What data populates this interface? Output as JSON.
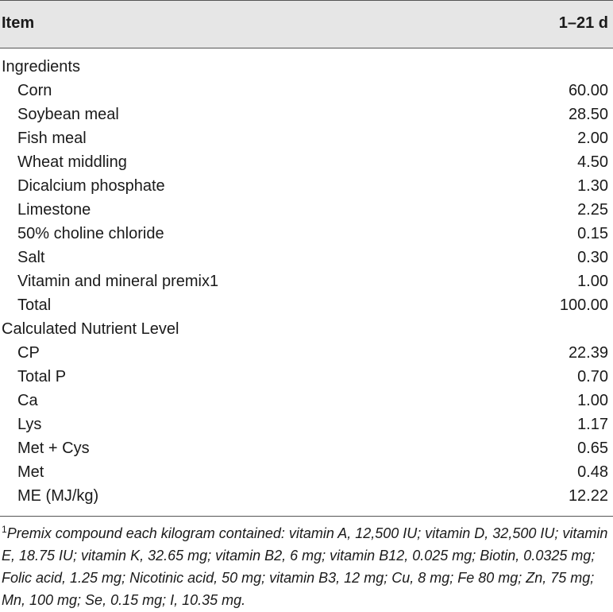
{
  "header": {
    "item": "Item",
    "period": "1–21 d"
  },
  "sections": [
    {
      "title": "Ingredients",
      "rows": [
        {
          "label": "Corn",
          "value": "60.00"
        },
        {
          "label": "Soybean meal",
          "value": "28.50"
        },
        {
          "label": "Fish meal",
          "value": "2.00"
        },
        {
          "label": "Wheat middling",
          "value": "4.50"
        },
        {
          "label": "Dicalcium phosphate",
          "value": "1.30"
        },
        {
          "label": "Limestone",
          "value": "2.25"
        },
        {
          "label": "50% choline chloride",
          "value": "0.15"
        },
        {
          "label": "Salt",
          "value": "0.30"
        },
        {
          "label": "Vitamin and mineral premix1",
          "value": "1.00"
        },
        {
          "label": "Total",
          "value": "100.00"
        }
      ]
    },
    {
      "title": "Calculated Nutrient Level",
      "rows": [
        {
          "label": "CP",
          "value": "22.39"
        },
        {
          "label": "Total P",
          "value": "0.70"
        },
        {
          "label": "Ca",
          "value": "1.00"
        },
        {
          "label": "Lys",
          "value": "1.17"
        },
        {
          "label": "Met + Cys",
          "value": "0.65"
        },
        {
          "label": "Met",
          "value": "0.48"
        },
        {
          "label": "ME (MJ/kg)",
          "value": "12.22"
        }
      ]
    }
  ],
  "footnote": {
    "marker": "1",
    "text": "Premix compound each kilogram contained: vitamin A, 12,500 IU; vitamin D, 32,500 IU; vitamin E, 18.75 IU; vitamin K, 32.65 mg; vitamin B2, 6 mg; vitamin B12, 0.025 mg; Biotin, 0.0325 mg; Folic acid, 1.25 mg; Nicotinic acid, 50 mg; vitamin B3, 12 mg; Cu, 8 mg; Fe 80 mg; Zn, 75 mg; Mn, 100 mg; Se, 0.15 mg; I, 10.35 mg."
  }
}
